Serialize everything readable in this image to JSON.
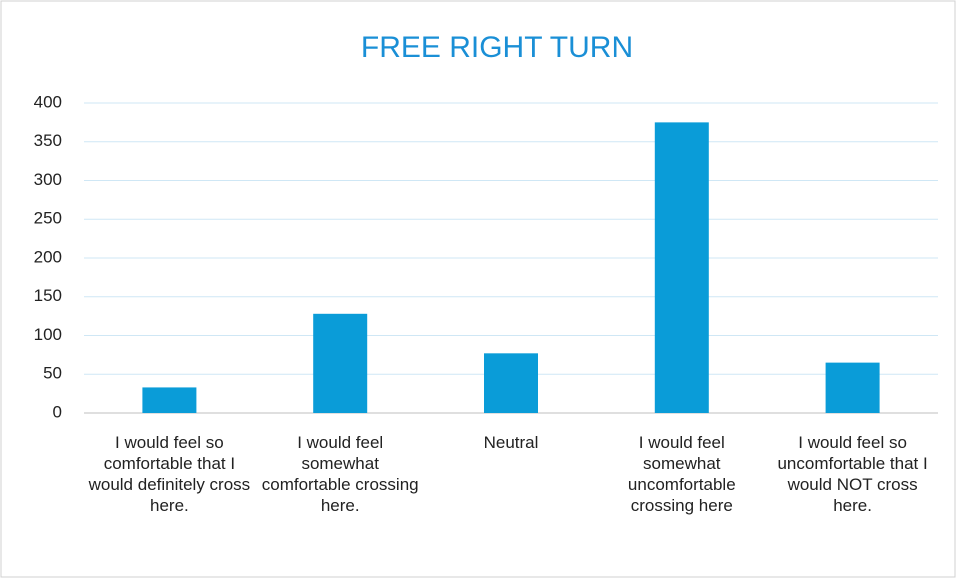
{
  "chart_data": {
    "type": "bar",
    "title": "FREE RIGHT TURN",
    "categories": [
      "I would feel so comfortable that I would definitely cross here.",
      "I would feel somewhat comfortable crossing here.",
      "Neutral",
      "I would feel somewhat uncomfortable crossing here",
      "I would feel so uncomfortable that I would NOT cross here."
    ],
    "values": [
      33,
      128,
      77,
      375,
      65
    ],
    "color": "#0a9cd8",
    "ylim": [
      0,
      400
    ],
    "yticks": [
      0,
      50,
      100,
      150,
      200,
      250,
      300,
      350,
      400
    ],
    "grid": true
  }
}
